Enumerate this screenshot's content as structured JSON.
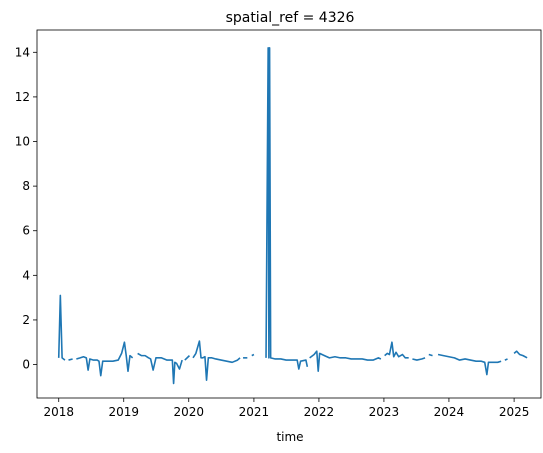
{
  "chart_data": {
    "type": "line",
    "title": "spatial_ref = 4326",
    "xlabel": "time",
    "ylabel": "",
    "xlim": [
      "2017-09-01",
      "2025-06-01"
    ],
    "ylim": [
      -1.5,
      15
    ],
    "x_ticks": [
      "2018",
      "2019",
      "2020",
      "2021",
      "2022",
      "2023",
      "2024",
      "2025"
    ],
    "y_ticks": [
      0,
      2,
      4,
      6,
      8,
      10,
      12,
      14
    ],
    "grid": false,
    "legend": "none",
    "color": "#1f77b4",
    "series": [
      {
        "segments": [
          [
            [
              "2018-01-01",
              0.3
            ],
            [
              "2018-01-10",
              3.1
            ],
            [
              "2018-01-20",
              0.3
            ],
            [
              "2018-02-05",
              0.2
            ]
          ],
          [
            [
              "2018-02-25",
              0.2
            ],
            [
              "2018-03-20",
              0.25
            ]
          ],
          [
            [
              "2018-04-10",
              0.25
            ],
            [
              "2018-05-01",
              0.3
            ],
            [
              "2018-05-20",
              0.35
            ],
            [
              "2018-06-05",
              0.3
            ],
            [
              "2018-06-15",
              -0.25
            ],
            [
              "2018-06-25",
              0.25
            ],
            [
              "2018-07-15",
              0.2
            ],
            [
              "2018-08-05",
              0.2
            ],
            [
              "2018-08-15",
              0.15
            ],
            [
              "2018-08-25",
              -0.5
            ],
            [
              "2018-09-05",
              0.15
            ],
            [
              "2018-10-01",
              0.15
            ],
            [
              "2018-11-01",
              0.15
            ],
            [
              "2018-12-01",
              0.2
            ],
            [
              "2018-12-20",
              0.5
            ],
            [
              "2019-01-05",
              1.0
            ],
            [
              "2019-01-15",
              0.4
            ],
            [
              "2019-01-25",
              -0.3
            ],
            [
              "2019-02-05",
              0.4
            ],
            [
              "2019-02-20",
              0.3
            ]
          ],
          [
            [
              "2019-03-20",
              0.5
            ],
            [
              "2019-04-10",
              0.4
            ],
            [
              "2019-05-01",
              0.4
            ],
            [
              "2019-05-20",
              0.3
            ],
            [
              "2019-06-01",
              0.25
            ],
            [
              "2019-06-15",
              -0.25
            ],
            [
              "2019-07-01",
              0.3
            ],
            [
              "2019-08-01",
              0.3
            ],
            [
              "2019-09-01",
              0.2
            ],
            [
              "2019-10-01",
              0.2
            ],
            [
              "2019-10-08",
              -0.85
            ],
            [
              "2019-10-15",
              0.1
            ],
            [
              "2019-10-25",
              0.05
            ],
            [
              "2019-11-10",
              -0.2
            ],
            [
              "2019-11-25",
              0.2
            ]
          ],
          [
            [
              "2019-12-10",
              0.2
            ],
            [
              "2020-01-05",
              0.4
            ]
          ],
          [
            [
              "2020-01-25",
              0.3
            ],
            [
              "2020-02-10",
              0.5
            ],
            [
              "2020-03-01",
              1.05
            ],
            [
              "2020-03-10",
              0.3
            ],
            [
              "2020-03-20",
              0.3
            ],
            [
              "2020-04-01",
              0.35
            ],
            [
              "2020-04-10",
              -0.7
            ],
            [
              "2020-04-20",
              0.3
            ],
            [
              "2020-05-10",
              0.3
            ],
            [
              "2020-06-01",
              0.25
            ],
            [
              "2020-07-01",
              0.2
            ],
            [
              "2020-08-01",
              0.15
            ],
            [
              "2020-09-01",
              0.1
            ],
            [
              "2020-10-01",
              0.2
            ],
            [
              "2020-10-15",
              0.3
            ]
          ],
          [
            [
              "2020-11-01",
              0.3
            ],
            [
              "2020-11-25",
              0.3
            ]
          ],
          [
            [
              "2020-12-20",
              0.4
            ],
            [
              "2021-01-01",
              0.45
            ]
          ],
          [
            [
              "2021-03-10",
              0.3
            ],
            [
              "2021-03-22",
              14.2
            ],
            [
              "2021-03-26",
              0.3
            ],
            [
              "2021-03-30",
              14.2
            ],
            [
              "2021-04-05",
              0.3
            ],
            [
              "2021-05-01",
              0.25
            ],
            [
              "2021-06-01",
              0.25
            ],
            [
              "2021-07-01",
              0.2
            ],
            [
              "2021-08-01",
              0.2
            ],
            [
              "2021-09-01",
              0.2
            ],
            [
              "2021-09-10",
              -0.2
            ],
            [
              "2021-09-20",
              0.15
            ],
            [
              "2021-10-20",
              0.2
            ],
            [
              "2021-10-28",
              -0.1
            ]
          ],
          [
            [
              "2021-11-10",
              0.3
            ],
            [
              "2021-12-05",
              0.45
            ],
            [
              "2021-12-20",
              0.6
            ],
            [
              "2021-12-28",
              -0.3
            ],
            [
              "2022-01-05",
              0.5
            ],
            [
              "2022-02-01",
              0.4
            ],
            [
              "2022-03-01",
              0.3
            ],
            [
              "2022-04-01",
              0.35
            ],
            [
              "2022-05-01",
              0.3
            ],
            [
              "2022-06-01",
              0.3
            ],
            [
              "2022-07-01",
              0.25
            ],
            [
              "2022-08-01",
              0.25
            ],
            [
              "2022-09-01",
              0.25
            ],
            [
              "2022-10-01",
              0.2
            ],
            [
              "2022-11-01",
              0.2
            ],
            [
              "2022-12-01",
              0.3
            ],
            [
              "2022-12-15",
              0.25
            ]
          ],
          [
            [
              "2023-01-05",
              0.4
            ],
            [
              "2023-01-20",
              0.5
            ],
            [
              "2023-02-01",
              0.45
            ],
            [
              "2023-02-15",
              1.0
            ],
            [
              "2023-02-25",
              0.35
            ],
            [
              "2023-03-10",
              0.55
            ],
            [
              "2023-03-25",
              0.35
            ],
            [
              "2023-04-15",
              0.45
            ],
            [
              "2023-05-01",
              0.3
            ],
            [
              "2023-05-20",
              0.3
            ]
          ],
          [
            [
              "2023-06-10",
              0.25
            ],
            [
              "2023-07-05",
              0.2
            ],
            [
              "2023-08-01",
              0.25
            ],
            [
              "2023-08-20",
              0.3
            ]
          ],
          [
            [
              "2023-09-10",
              0.45
            ],
            [
              "2023-10-01",
              0.4
            ]
          ],
          [
            [
              "2023-11-01",
              0.45
            ],
            [
              "2023-12-01",
              0.4
            ],
            [
              "2024-01-01",
              0.35
            ],
            [
              "2024-02-01",
              0.3
            ],
            [
              "2024-03-01",
              0.2
            ],
            [
              "2024-04-01",
              0.25
            ],
            [
              "2024-05-01",
              0.2
            ],
            [
              "2024-06-01",
              0.15
            ],
            [
              "2024-07-01",
              0.15
            ],
            [
              "2024-07-20",
              0.1
            ],
            [
              "2024-08-01",
              -0.45
            ],
            [
              "2024-08-10",
              0.1
            ],
            [
              "2024-09-01",
              0.1
            ],
            [
              "2024-10-01",
              0.1
            ],
            [
              "2024-10-20",
              0.15
            ]
          ],
          [
            [
              "2024-11-10",
              0.2
            ],
            [
              "2024-11-25",
              0.25
            ]
          ],
          [
            [
              "2025-01-01",
              0.5
            ],
            [
              "2025-01-15",
              0.6
            ],
            [
              "2025-02-01",
              0.45
            ],
            [
              "2025-02-20",
              0.4
            ],
            [
              "2025-03-15",
              0.3
            ]
          ]
        ]
      }
    ]
  }
}
